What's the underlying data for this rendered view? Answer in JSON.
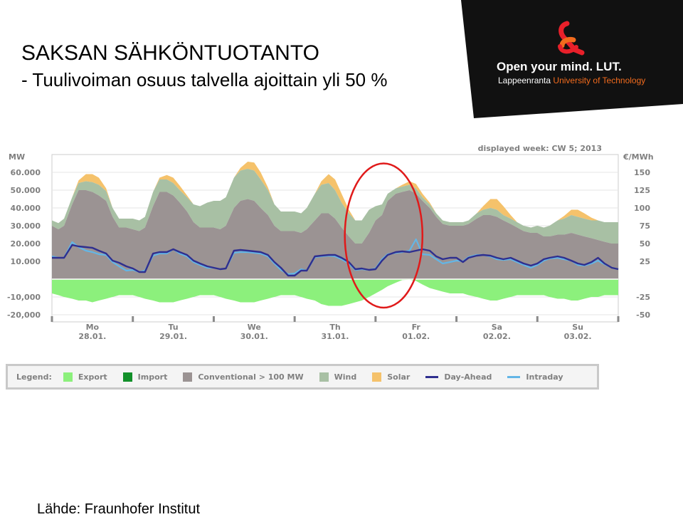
{
  "slide": {
    "title": "SAKSAN SÄHKÖNTUOTANTO",
    "subtitle": "- Tuulivoiman osuus talvella ajoittain yli 50 %",
    "source": "Lähde: Fraunhofer Institut"
  },
  "logo": {
    "slogan": "Open your mind. LUT.",
    "university_prefix": "Lappeenranta",
    "university_suffix": "University of Technology",
    "colors": {
      "background": "#111111",
      "text": "#ffffff",
      "accent_red": "#e8202a",
      "accent_orange": "#f26b1d"
    }
  },
  "chart_data": {
    "type": "area",
    "header": "displayed week: CW 5; 2013",
    "ylabel_left": "MW",
    "ylabel_right": "€/MWh",
    "yticks_left": [
      {
        "value": 60000,
        "label": "60.000"
      },
      {
        "value": 50000,
        "label": "50.000"
      },
      {
        "value": 40000,
        "label": "40.000"
      },
      {
        "value": 30000,
        "label": "30.000"
      },
      {
        "value": 20000,
        "label": "20.000"
      },
      {
        "value": 10000,
        "label": "10.000"
      },
      {
        "value": -10000,
        "label": "-10,000"
      },
      {
        "value": -20000,
        "label": "-20,000"
      }
    ],
    "yticks_right": [
      {
        "value": 150,
        "label": "150"
      },
      {
        "value": 125,
        "label": "125"
      },
      {
        "value": 100,
        "label": "100"
      },
      {
        "value": 75,
        "label": "75"
      },
      {
        "value": 50,
        "label": "50"
      },
      {
        "value": 25,
        "label": "25"
      },
      {
        "value": -25,
        "label": "-25"
      },
      {
        "value": -50,
        "label": "-50"
      }
    ],
    "ylim_left": [
      -24000,
      70000
    ],
    "ylim_right": [
      -60,
      175
    ],
    "xlim_days": [
      0,
      7
    ],
    "day_labels": [
      {
        "day": "Mo",
        "date": "28.01."
      },
      {
        "day": "Tu",
        "date": "29.01."
      },
      {
        "day": "We",
        "date": "30.01."
      },
      {
        "day": "Th",
        "date": "31.01."
      },
      {
        "day": "Fr",
        "date": "01.02."
      },
      {
        "day": "Sa",
        "date": "02.02."
      },
      {
        "day": "Su",
        "date": "03.02."
      }
    ],
    "x_days": [
      0,
      0.08,
      0.15,
      0.25,
      0.33,
      0.42,
      0.5,
      0.58,
      0.67,
      0.75,
      0.83,
      0.92,
      1.0,
      1.08,
      1.15,
      1.25,
      1.33,
      1.42,
      1.5,
      1.58,
      1.67,
      1.75,
      1.83,
      1.92,
      2.0,
      2.08,
      2.15,
      2.25,
      2.33,
      2.42,
      2.5,
      2.58,
      2.67,
      2.75,
      2.83,
      2.92,
      3.0,
      3.08,
      3.15,
      3.25,
      3.33,
      3.42,
      3.5,
      3.58,
      3.67,
      3.75,
      3.83,
      3.92,
      4.0,
      4.08,
      4.15,
      4.25,
      4.33,
      4.42,
      4.5,
      4.58,
      4.67,
      4.75,
      4.83,
      4.92,
      5.0,
      5.08,
      5.15,
      5.25,
      5.33,
      5.42,
      5.5,
      5.58,
      5.67,
      5.75,
      5.83,
      5.92,
      6.0,
      6.08,
      6.15,
      6.25,
      6.33,
      6.42,
      6.5,
      6.58,
      6.67,
      6.75,
      6.83,
      6.92,
      7.0
    ],
    "series": [
      {
        "name": "Conventional > 100 MW",
        "color": "#9b9393",
        "values": [
          30000,
          28000,
          30000,
          42000,
          50000,
          50000,
          49000,
          47000,
          44000,
          35000,
          29000,
          29000,
          28000,
          27000,
          29000,
          41000,
          49000,
          49000,
          47000,
          43000,
          38000,
          32000,
          29000,
          29000,
          29000,
          28000,
          30000,
          40000,
          44000,
          45000,
          44000,
          40000,
          36000,
          30000,
          27000,
          27000,
          27000,
          26000,
          28000,
          33000,
          37000,
          37000,
          34000,
          29000,
          24000,
          20000,
          20000,
          26000,
          33000,
          36000,
          44000,
          48000,
          49000,
          50000,
          48000,
          44000,
          40000,
          35000,
          31000,
          30000,
          30000,
          30000,
          31000,
          34000,
          36000,
          36000,
          35000,
          33000,
          31000,
          29000,
          27000,
          26000,
          26000,
          24000,
          24000,
          25000,
          25000,
          26000,
          25000,
          24000,
          23000,
          22000,
          21000,
          20000,
          20000
        ]
      },
      {
        "name": "Wind",
        "color": "#a8c0a4",
        "values": [
          3000,
          3500,
          4000,
          4000,
          4000,
          5000,
          5500,
          6000,
          5500,
          5000,
          5000,
          5000,
          6000,
          6000,
          6000,
          8000,
          7000,
          7000,
          7000,
          7000,
          8000,
          10000,
          12000,
          14000,
          15000,
          16000,
          16000,
          17000,
          17000,
          17000,
          17000,
          16000,
          14000,
          12000,
          11000,
          11000,
          11000,
          11000,
          12000,
          15000,
          16000,
          17000,
          16000,
          14000,
          13000,
          13000,
          13000,
          13000,
          8000,
          6000,
          4000,
          3000,
          3000,
          3000,
          3000,
          2000,
          2000,
          2000,
          2000,
          2000,
          2000,
          2000,
          2000,
          3000,
          3000,
          4000,
          4000,
          3000,
          3000,
          3000,
          3000,
          3000,
          4000,
          5000,
          6000,
          8000,
          9000,
          10000,
          10000,
          10000,
          10000,
          11000,
          11000,
          12000,
          12000
        ]
      },
      {
        "name": "Solar",
        "color": "#f5c26b",
        "values": [
          0,
          0,
          0,
          0,
          1500,
          4000,
          4500,
          4000,
          1500,
          0,
          0,
          0,
          0,
          0,
          0,
          0,
          1000,
          2500,
          3000,
          2500,
          1000,
          0,
          0,
          0,
          0,
          0,
          0,
          0,
          1500,
          4000,
          4500,
          4000,
          1500,
          0,
          0,
          0,
          0,
          0,
          0,
          0,
          2000,
          5000,
          6000,
          5000,
          2000,
          0,
          0,
          0,
          0,
          0,
          0,
          0,
          1000,
          2000,
          2500,
          2000,
          1000,
          0,
          0,
          0,
          0,
          0,
          0,
          0,
          2000,
          5000,
          6000,
          5000,
          2000,
          0,
          0,
          0,
          0,
          0,
          0,
          0,
          1500,
          3000,
          4000,
          3000,
          1500,
          0,
          0,
          0,
          0
        ]
      },
      {
        "name": "Export",
        "color": "#8cf07c",
        "values": [
          -8000,
          -9000,
          -10000,
          -11000,
          -12000,
          -12000,
          -13000,
          -12000,
          -11000,
          -10000,
          -9000,
          -9000,
          -9000,
          -10000,
          -11000,
          -12000,
          -13000,
          -13000,
          -13000,
          -12000,
          -11000,
          -10000,
          -9000,
          -9000,
          -9000,
          -10000,
          -11000,
          -12000,
          -13000,
          -13000,
          -13000,
          -12000,
          -11000,
          -10000,
          -9000,
          -9000,
          -9000,
          -10000,
          -11000,
          -12000,
          -14000,
          -15000,
          -15000,
          -15000,
          -14000,
          -13000,
          -12000,
          -10000,
          -8000,
          -6000,
          -4000,
          -2000,
          -500,
          -300,
          -1000,
          -3000,
          -5000,
          -6000,
          -7000,
          -8000,
          -8000,
          -8000,
          -9000,
          -10000,
          -11000,
          -12000,
          -12000,
          -11000,
          -10000,
          -9000,
          -9000,
          -9000,
          -9000,
          -9000,
          -10000,
          -11000,
          -11000,
          -12000,
          -12000,
          -11000,
          -10000,
          -10000,
          -9000,
          -9000,
          -9000
        ]
      },
      {
        "name": "Day-Ahead",
        "color": "#2f2f8f",
        "values": [
          30,
          30,
          30,
          48,
          46,
          45,
          44,
          40,
          36,
          26,
          23,
          18,
          15,
          10,
          10,
          36,
          38,
          38,
          42,
          38,
          34,
          26,
          22,
          18,
          16,
          14,
          15,
          40,
          41,
          40,
          39,
          38,
          34,
          24,
          16,
          5,
          5,
          12,
          12,
          32,
          33,
          34,
          34,
          30,
          24,
          14,
          15,
          13,
          14,
          26,
          34,
          38,
          39,
          38,
          40,
          42,
          40,
          32,
          28,
          30,
          30,
          24,
          30,
          33,
          34,
          33,
          30,
          28,
          30,
          26,
          22,
          19,
          22,
          28,
          30,
          32,
          30,
          26,
          22,
          20,
          24,
          30,
          22,
          16,
          14
        ]
      },
      {
        "name": "Intraday",
        "color": "#63b6e6",
        "values": [
          32,
          30,
          30,
          52,
          45,
          40,
          38,
          35,
          34,
          24,
          18,
          12,
          13,
          10,
          12,
          33,
          36,
          36,
          42,
          36,
          32,
          24,
          20,
          16,
          16,
          14,
          15,
          37,
          38,
          38,
          37,
          36,
          32,
          22,
          13,
          7,
          8,
          14,
          12,
          31,
          32,
          33,
          32,
          28,
          22,
          13,
          14,
          13,
          15,
          28,
          35,
          37,
          38,
          40,
          56,
          35,
          34,
          28,
          22,
          24,
          26,
          25,
          31,
          34,
          34,
          32,
          28,
          27,
          28,
          24,
          20,
          16,
          20,
          26,
          29,
          30,
          28,
          26,
          20,
          19,
          22,
          26,
          21,
          16,
          14
        ]
      }
    ],
    "legend": {
      "title": "Legend:",
      "items": [
        {
          "label": "Export",
          "color": "#8cf07c",
          "kind": "box"
        },
        {
          "label": "Import",
          "color": "#12902a",
          "kind": "box"
        },
        {
          "label": "Conventional > 100 MW",
          "color": "#9b9393",
          "kind": "box"
        },
        {
          "label": "Wind",
          "color": "#a8c0a4",
          "kind": "box"
        },
        {
          "label": "Solar",
          "color": "#f5c26b",
          "kind": "box"
        },
        {
          "label": "Day-Ahead",
          "color": "#2f2f8f",
          "kind": "line"
        },
        {
          "label": "Intraday",
          "color": "#63b6e6",
          "kind": "line"
        }
      ]
    },
    "highlight_ellipse": {
      "color": "#e01a1a",
      "day_center": 4.1,
      "value_top": 65000,
      "value_bottom": -16000,
      "day_halfwidth": 0.48
    }
  }
}
